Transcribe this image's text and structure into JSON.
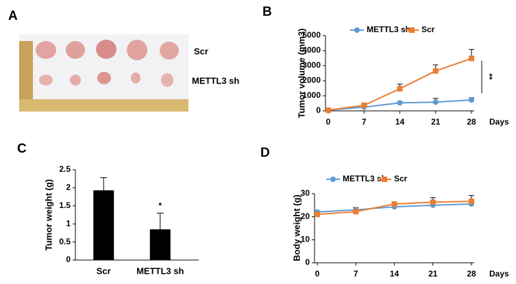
{
  "photo": {
    "panel": "A",
    "rows": [
      "Scr",
      "METTL3 sh"
    ]
  },
  "chart_data": [
    {
      "type": "line",
      "panel": "B",
      "y_label": "Tumor volume (mm3)",
      "x_label": "Days",
      "x": [
        0,
        7,
        14,
        21,
        28
      ],
      "xlim": [
        0,
        28
      ],
      "xticks": [
        0,
        7,
        14,
        21,
        28
      ],
      "ylim": [
        0,
        5000
      ],
      "yticks": [
        0,
        1000,
        2000,
        3000,
        4000,
        5000
      ],
      "series": [
        {
          "name": "METTL3 sh",
          "color": "#5b9bd5",
          "marker": "circle",
          "values": [
            50,
            250,
            530,
            580,
            720
          ],
          "errors": [
            0,
            50,
            80,
            250,
            150
          ]
        },
        {
          "name": "Scr",
          "color": "#ed7d31",
          "marker": "square",
          "values": [
            50,
            370,
            1470,
            2650,
            3480
          ],
          "errors": [
            0,
            60,
            300,
            400,
            600
          ]
        }
      ],
      "annotation": "**"
    },
    {
      "type": "bar",
      "panel": "C",
      "y_label": "Tumor weight (g)",
      "categories": [
        "Scr",
        "METTL3 sh"
      ],
      "values": [
        1.93,
        0.85
      ],
      "errors": [
        0.35,
        0.45
      ],
      "color": "#000000",
      "ylim": [
        0,
        2.5
      ],
      "yticks": [
        0,
        0.5,
        1,
        1.5,
        2,
        2.5
      ],
      "annotation": "*"
    },
    {
      "type": "line",
      "panel": "D",
      "y_label": "Body weight (g)",
      "x_label": "Days",
      "x": [
        0,
        7,
        14,
        21,
        28
      ],
      "xlim": [
        0,
        28
      ],
      "xticks": [
        0,
        7,
        14,
        21,
        28
      ],
      "ylim": [
        0,
        30
      ],
      "yticks": [
        0,
        10,
        20,
        30
      ],
      "series": [
        {
          "name": "METTL3 sh",
          "color": "#5b9bd5",
          "marker": "circle",
          "values": [
            22,
            23,
            24.3,
            25,
            25.5
          ],
          "errors": [
            0.5,
            1,
            1,
            1,
            1
          ]
        },
        {
          "name": "Scr",
          "color": "#ed7d31",
          "marker": "square",
          "values": [
            21,
            22.2,
            25.5,
            26.3,
            26.7
          ],
          "errors": [
            0.5,
            0.5,
            1,
            2,
            2.5
          ]
        }
      ]
    }
  ]
}
